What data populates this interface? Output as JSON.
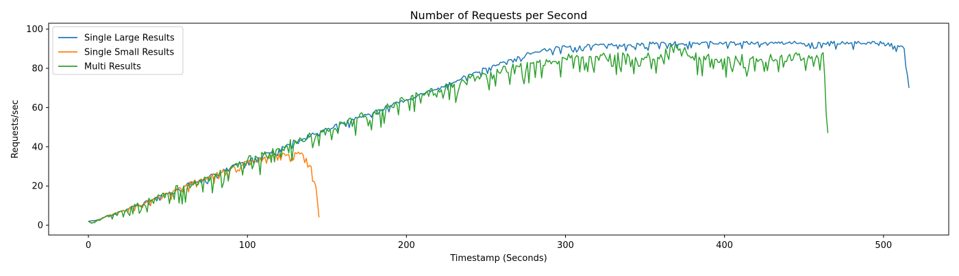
{
  "chart_data": {
    "type": "line",
    "title": "Number of Requests per Second",
    "xlabel": "Timestamp (Seconds)",
    "ylabel": "Requests/sec",
    "xlim": [
      -25,
      541
    ],
    "ylim": [
      -5,
      103
    ],
    "xticks": [
      0,
      100,
      200,
      300,
      400,
      500
    ],
    "yticks": [
      0,
      20,
      40,
      60,
      80,
      100
    ],
    "grid": false,
    "legend_position": "top-left",
    "series": [
      {
        "name": "Single Large Results",
        "color": "#1f77b4",
        "points": [
          [
            0,
            2
          ],
          [
            5,
            2.5
          ],
          [
            10,
            4
          ],
          [
            20,
            7
          ],
          [
            30,
            10
          ],
          [
            40,
            13
          ],
          [
            50,
            16
          ],
          [
            60,
            20
          ],
          [
            70,
            23
          ],
          [
            80,
            26
          ],
          [
            90,
            30
          ],
          [
            100,
            33
          ],
          [
            110,
            36
          ],
          [
            120,
            39
          ],
          [
            130,
            43
          ],
          [
            140,
            46
          ],
          [
            150,
            49
          ],
          [
            160,
            52
          ],
          [
            170,
            55
          ],
          [
            180,
            58
          ],
          [
            190,
            61
          ],
          [
            200,
            64
          ],
          [
            210,
            67
          ],
          [
            220,
            70
          ],
          [
            230,
            73
          ],
          [
            240,
            77
          ],
          [
            250,
            80
          ],
          [
            260,
            83
          ],
          [
            270,
            86
          ],
          [
            280,
            88
          ],
          [
            290,
            90
          ],
          [
            300,
            91
          ],
          [
            320,
            92
          ],
          [
            340,
            92
          ],
          [
            360,
            93
          ],
          [
            380,
            93
          ],
          [
            400,
            93
          ],
          [
            420,
            93
          ],
          [
            440,
            93
          ],
          [
            460,
            93
          ],
          [
            480,
            93
          ],
          [
            500,
            93
          ],
          [
            510,
            91
          ],
          [
            513,
            90
          ],
          [
            516,
            70
          ]
        ],
        "noise": 1.6
      },
      {
        "name": "Single Small Results",
        "color": "#ff7f0e",
        "points": [
          [
            0,
            2
          ],
          [
            2,
            1
          ],
          [
            10,
            4
          ],
          [
            20,
            7
          ],
          [
            30,
            10
          ],
          [
            40,
            13
          ],
          [
            50,
            16
          ],
          [
            60,
            20
          ],
          [
            70,
            23
          ],
          [
            80,
            26
          ],
          [
            90,
            29
          ],
          [
            100,
            32
          ],
          [
            110,
            34
          ],
          [
            120,
            36
          ],
          [
            130,
            37
          ],
          [
            135,
            36
          ],
          [
            140,
            30
          ],
          [
            143,
            20
          ],
          [
            145,
            4
          ]
        ],
        "noise": 2.2
      },
      {
        "name": "Multi Results",
        "color": "#2ca02c",
        "points": [
          [
            0,
            2
          ],
          [
            2,
            1
          ],
          [
            10,
            4
          ],
          [
            20,
            7
          ],
          [
            30,
            10
          ],
          [
            40,
            13
          ],
          [
            50,
            16
          ],
          [
            60,
            20
          ],
          [
            70,
            23
          ],
          [
            80,
            26
          ],
          [
            90,
            30
          ],
          [
            100,
            33
          ],
          [
            110,
            36
          ],
          [
            120,
            39
          ],
          [
            130,
            43
          ],
          [
            140,
            46
          ],
          [
            150,
            49
          ],
          [
            160,
            52
          ],
          [
            170,
            55
          ],
          [
            180,
            58
          ],
          [
            190,
            61
          ],
          [
            200,
            64
          ],
          [
            210,
            67
          ],
          [
            220,
            69
          ],
          [
            230,
            72
          ],
          [
            240,
            75
          ],
          [
            250,
            77
          ],
          [
            260,
            79
          ],
          [
            270,
            81
          ],
          [
            280,
            83
          ],
          [
            290,
            84
          ],
          [
            300,
            85
          ],
          [
            320,
            86
          ],
          [
            340,
            86
          ],
          [
            360,
            87
          ],
          [
            370,
            92
          ],
          [
            380,
            86
          ],
          [
            400,
            85
          ],
          [
            420,
            85
          ],
          [
            440,
            86
          ],
          [
            455,
            86
          ],
          [
            462,
            88
          ],
          [
            465,
            47
          ]
        ],
        "noise": 4.5
      }
    ]
  }
}
